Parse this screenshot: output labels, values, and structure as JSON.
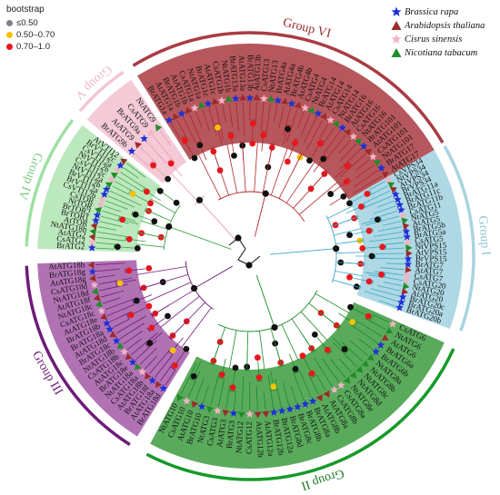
{
  "legend": {
    "title": "bootstrap",
    "items": [
      {
        "label": "≤0.50",
        "color": "#7f7f8f"
      },
      {
        "label": "0.50–0.70",
        "color": "#f2c200"
      },
      {
        "label": "0.70–1.0",
        "color": "#e8161b"
      }
    ]
  },
  "species": [
    {
      "label": "Brassica rapa",
      "shape": "star",
      "color": "#1f2fd6"
    },
    {
      "label": "Arabidopsis thaliana",
      "shape": "triangle",
      "color": "#9e2a2a"
    },
    {
      "label": "Cisrus sinensis",
      "shape": "star",
      "color": "#f3b3c6"
    },
    {
      "label": "Nicotiana tabacum",
      "shape": "triangle",
      "color": "#1f8c2a"
    }
  ],
  "groups": [
    {
      "name": "Group I",
      "color": "#aed8e4",
      "ring": "#a9d3e0",
      "text_color": "#8ec5d6"
    },
    {
      "name": "Group II",
      "color": "#5aaa5c",
      "ring": "#159a28",
      "text_color": "#1a7a26"
    },
    {
      "name": "Group III",
      "color": "#b172b4",
      "ring": "#6d1c78",
      "text_color": "#6d1c78"
    },
    {
      "name": "Group IV",
      "color": "#bce8bd",
      "ring": "#9fe0a3",
      "text_color": "#7cc782"
    },
    {
      "name": "Group V",
      "color": "#f3cad6",
      "ring": "#f4c5d3",
      "text_color": "#f0b6c7"
    },
    {
      "name": "Group VI",
      "color": "#b5575c",
      "ring": "#a93c42",
      "text_color": "#9a2c30"
    }
  ],
  "leaves": {
    "group1": [
      "CsVPS34",
      "NtVPS34",
      "AtVPS34",
      "BrVPS34",
      "BrATG11a",
      "BrATG11c",
      "BrATG11b",
      "CsATG11",
      "NtATG5",
      "AtATG5",
      "BrATG5b",
      "BrATG5a",
      "CsATG5",
      "NtVPS15",
      "AtVPS15",
      "BrVPS15",
      "BrATG7",
      "AtATG7",
      "CsATG7",
      "CsATG20",
      "NtATG20",
      "AtATG20",
      "BrATG20c",
      "BrATG20a",
      "BrATG20b"
    ],
    "group2": [
      "CsATG6",
      "NtATG6",
      "AtATG6",
      "BrATG6a",
      "BrATG6b",
      "NtATG8a",
      "NtATG8b",
      "NtATG8c",
      "NtATG8d",
      "NtATG8e",
      "CsATG8a",
      "CsATG8b",
      "AtATG8a",
      "AtATG8b",
      "BrATG8a",
      "BrATG8b",
      "BrATG8c",
      "BrATG8d",
      "BrATG12a",
      "BrATG12b",
      "AtATG12a",
      "AtATG12b",
      "CsATG12",
      "NtATG12",
      "BrATG3",
      "AtATG3",
      "CsATG3",
      "NtATG3",
      "BrATG10",
      "AtATG10",
      "CsATG10",
      "NtATG10"
    ],
    "group3": [
      "BrATG18d",
      "AtATG18a",
      "BrATG18f",
      "AtATG18b",
      "CsATG18a",
      "NtATG18a",
      "BrATG18e",
      "AtATG18c",
      "CsATG18b",
      "NtATG18b",
      "BrATG18c",
      "AtATG18d",
      "BrATG18a",
      "BrATG18b",
      "AtATG18e",
      "CsATG18c",
      "NtATG18c",
      "AtATG18f",
      "NtATG18d",
      "CsATG18d",
      "AtATG18g",
      "BrATG18g",
      "AtATG18h"
    ],
    "group4": [
      "BrATG2",
      "CsATG2",
      "AtATG2",
      "NtATG18h",
      "AtTOR",
      "BrTOR1",
      "BrTOR2",
      "NtTOR",
      "CsTOR",
      "CsVTI12b",
      "BrVTI12a",
      "BrVTI12b",
      "NtVTI12a",
      "CsVTI12c",
      "NtVTI12b",
      "CsVTI12a",
      "BrVTI12c",
      "AtVTI12"
    ],
    "group5": [
      "BrATG9b",
      "AtATG9",
      "BrATG9a",
      "CsATG9",
      "NtATG9"
    ],
    "group6": [
      "BrATG1a",
      "AtATG1a",
      "BrATG1b",
      "AtATG1b",
      "CsATG1a",
      "NtATG1a",
      "BrATG1c",
      "AtATG1c",
      "CsATG1b",
      "NtATG1b",
      "BrATG13a",
      "AtATG13a",
      "BrATG13b",
      "AtATG13b",
      "CsATG13",
      "NtATG13",
      "BrATG4a",
      "AtATG4a",
      "BrATG4b",
      "AtATG4b",
      "CsATG4",
      "NtATG4",
      "BrATG14",
      "AtATG14",
      "CsATG14",
      "NtATG14",
      "BrATG16",
      "AtATG16",
      "CsATG16",
      "NtATG16",
      "BrATG101",
      "AtATG101",
      "CsATG101",
      "NtATG101",
      "BrATG17",
      "AtATG17"
    ]
  },
  "group_label_positions": {
    "note": "labels drawn on outer ring"
  }
}
